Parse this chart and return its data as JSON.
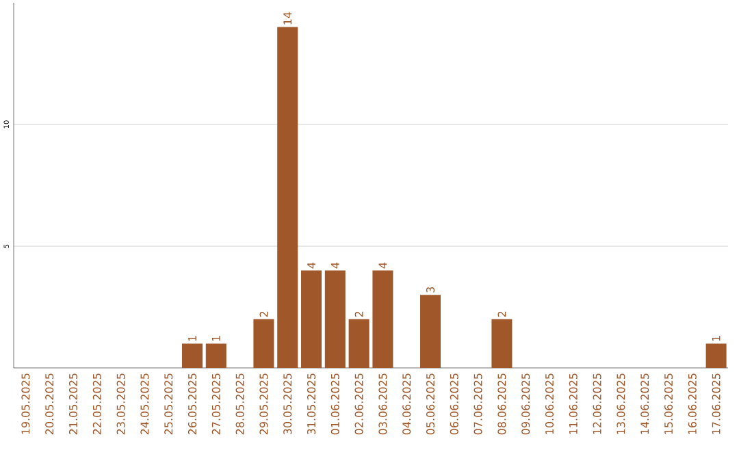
{
  "chart_data": {
    "type": "bar",
    "categories": [
      "19.05.2025",
      "20.05.2025",
      "21.05.2025",
      "22.05.2025",
      "23.05.2025",
      "24.05.2025",
      "25.05.2025",
      "26.05.2025",
      "27.05.2025",
      "28.05.2025",
      "29.05.2025",
      "30.05.2025",
      "31.05.2025",
      "01.06.2025",
      "02.06.2025",
      "03.06.2025",
      "04.06.2025",
      "05.06.2025",
      "06.06.2025",
      "07.06.2025",
      "08.06.2025",
      "09.06.2025",
      "10.06.2025",
      "11.06.2025",
      "12.06.2025",
      "13.06.2025",
      "14.06.2025",
      "15.06.2025",
      "16.06.2025",
      "17.06.2025"
    ],
    "values": [
      0,
      0,
      0,
      0,
      0,
      0,
      0,
      1,
      1,
      0,
      2,
      14,
      4,
      4,
      2,
      4,
      0,
      3,
      0,
      0,
      2,
      0,
      0,
      0,
      0,
      0,
      0,
      0,
      0,
      1
    ],
    "value_labels": [
      null,
      null,
      null,
      null,
      null,
      null,
      null,
      "1",
      "1",
      null,
      "2",
      "14",
      "4",
      "4",
      "2",
      "4",
      null,
      "3",
      null,
      null,
      "2",
      null,
      null,
      null,
      null,
      null,
      null,
      null,
      null,
      "1"
    ],
    "color": "#a0582a",
    "ylim": [
      0,
      15
    ],
    "yticks": [
      5,
      10
    ],
    "grid": "y"
  }
}
